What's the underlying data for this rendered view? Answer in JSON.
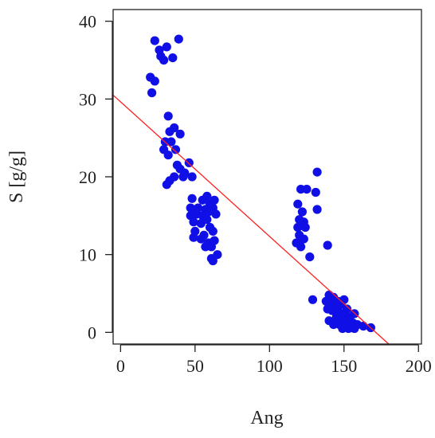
{
  "chart_data": {
    "type": "scatter",
    "xlabel": "Ang",
    "ylabel": "S [g/g]",
    "xlim": [
      -5,
      202
    ],
    "ylim": [
      -1.5,
      41.5
    ],
    "x_ticks": [
      0,
      50,
      100,
      150,
      200
    ],
    "y_ticks": [
      0,
      10,
      20,
      30,
      40
    ],
    "x_tick_labels": [
      "0",
      "50",
      "100",
      "150",
      "200"
    ],
    "y_tick_labels": [
      "0",
      "10",
      "20",
      "30",
      "40"
    ],
    "grid": false,
    "legend": "none",
    "point_color": "#1010e6",
    "line_color": "#ff2020",
    "trend_line": {
      "x": [
        -5,
        180
      ],
      "y": [
        30.5,
        -1.5
      ]
    },
    "points": [
      [
        23,
        37.5
      ],
      [
        39,
        37.7
      ],
      [
        26,
        36.3
      ],
      [
        31,
        36.7
      ],
      [
        27,
        35.5
      ],
      [
        35,
        35.3
      ],
      [
        29,
        35.0
      ],
      [
        20,
        32.8
      ],
      [
        23,
        32.3
      ],
      [
        21,
        30.8
      ],
      [
        32,
        27.8
      ],
      [
        33,
        25.8
      ],
      [
        36,
        26.3
      ],
      [
        40,
        25.5
      ],
      [
        30,
        24.5
      ],
      [
        34,
        24.5
      ],
      [
        29,
        23.5
      ],
      [
        37,
        23.5
      ],
      [
        32,
        22.8
      ],
      [
        38,
        21.5
      ],
      [
        40,
        21.0
      ],
      [
        46,
        21.8
      ],
      [
        43,
        20.5
      ],
      [
        48,
        20.0
      ],
      [
        42,
        20.0
      ],
      [
        36,
        20.0
      ],
      [
        33,
        19.5
      ],
      [
        31,
        19.0
      ],
      [
        48,
        17.2
      ],
      [
        55,
        17.0
      ],
      [
        58,
        17.5
      ],
      [
        63,
        17.0
      ],
      [
        60,
        16.5
      ],
      [
        47,
        16.0
      ],
      [
        52,
        16.0
      ],
      [
        57,
        15.8
      ],
      [
        62,
        16.0
      ],
      [
        47,
        15.0
      ],
      [
        51,
        15.2
      ],
      [
        55,
        15.0
      ],
      [
        59,
        15.5
      ],
      [
        64,
        15.2
      ],
      [
        49,
        14.2
      ],
      [
        54,
        14.0
      ],
      [
        58,
        14.5
      ],
      [
        60,
        13.5
      ],
      [
        50,
        13.0
      ],
      [
        56,
        12.5
      ],
      [
        62,
        13.0
      ],
      [
        49,
        12.2
      ],
      [
        54,
        12.0
      ],
      [
        59,
        11.5
      ],
      [
        63,
        11.8
      ],
      [
        57,
        11.0
      ],
      [
        61,
        11.0
      ],
      [
        65,
        10.0
      ],
      [
        61,
        9.5
      ],
      [
        62,
        9.2
      ],
      [
        132,
        20.6
      ],
      [
        121,
        18.4
      ],
      [
        125,
        18.4
      ],
      [
        131,
        18.0
      ],
      [
        119,
        16.5
      ],
      [
        122,
        15.5
      ],
      [
        132,
        15.8
      ],
      [
        120,
        14.5
      ],
      [
        123,
        14.2
      ],
      [
        119,
        13.5
      ],
      [
        124,
        13.5
      ],
      [
        120,
        12.5
      ],
      [
        123,
        12.0
      ],
      [
        118,
        11.5
      ],
      [
        121,
        11.0
      ],
      [
        139,
        11.2
      ],
      [
        127,
        9.7
      ],
      [
        129,
        4.2
      ],
      [
        140,
        4.8
      ],
      [
        143,
        4.5
      ],
      [
        138,
        4.0
      ],
      [
        146,
        4.0
      ],
      [
        141,
        3.8
      ],
      [
        150,
        4.2
      ],
      [
        144,
        3.4
      ],
      [
        148,
        3.6
      ],
      [
        139,
        3.0
      ],
      [
        142,
        2.8
      ],
      [
        146,
        2.8
      ],
      [
        152,
        3.0
      ],
      [
        157,
        2.4
      ],
      [
        145,
        2.0
      ],
      [
        150,
        2.4
      ],
      [
        154,
        2.0
      ],
      [
        140,
        1.5
      ],
      [
        148,
        1.5
      ],
      [
        152,
        1.5
      ],
      [
        156,
        1.2
      ],
      [
        143,
        1.0
      ],
      [
        147,
        1.0
      ],
      [
        151,
        0.8
      ],
      [
        159,
        1.0
      ],
      [
        163,
        0.8
      ],
      [
        155,
        0.6
      ],
      [
        168,
        0.6
      ],
      [
        149,
        0.5
      ],
      [
        153,
        0.5
      ],
      [
        157,
        0.5
      ]
    ]
  }
}
